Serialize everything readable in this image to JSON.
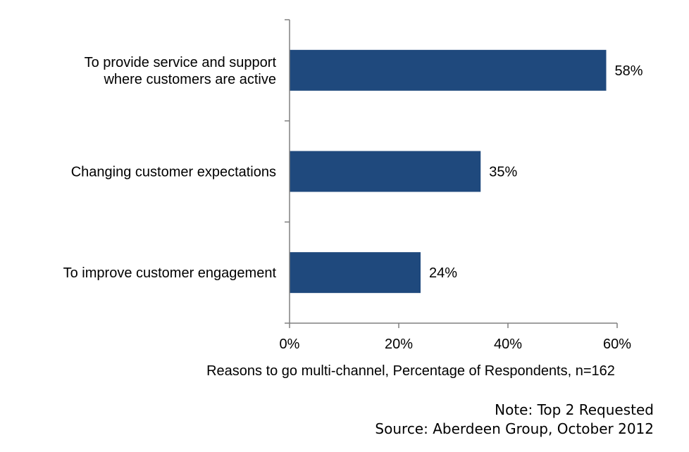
{
  "chart_data": {
    "type": "bar",
    "orientation": "horizontal",
    "categories": [
      [
        "To provide service and support",
        "where customers are active"
      ],
      [
        "Changing customer expectations"
      ],
      [
        "To improve customer engagement"
      ]
    ],
    "values": [
      58,
      35,
      24
    ],
    "value_labels": [
      "58%",
      "35%",
      "24%"
    ],
    "x_ticks": [
      "0%",
      "20%",
      "40%",
      "60%"
    ],
    "xlim": [
      0,
      60
    ],
    "xlabel": "Reasons to go multi-channel, Percentage of Respondents, n=162",
    "bar_color": "#1F497D",
    "grid": false,
    "legend": "none"
  },
  "notes": {
    "note": "Note: Top 2 Requested",
    "source": "Source: Aberdeen Group, October 2012"
  }
}
